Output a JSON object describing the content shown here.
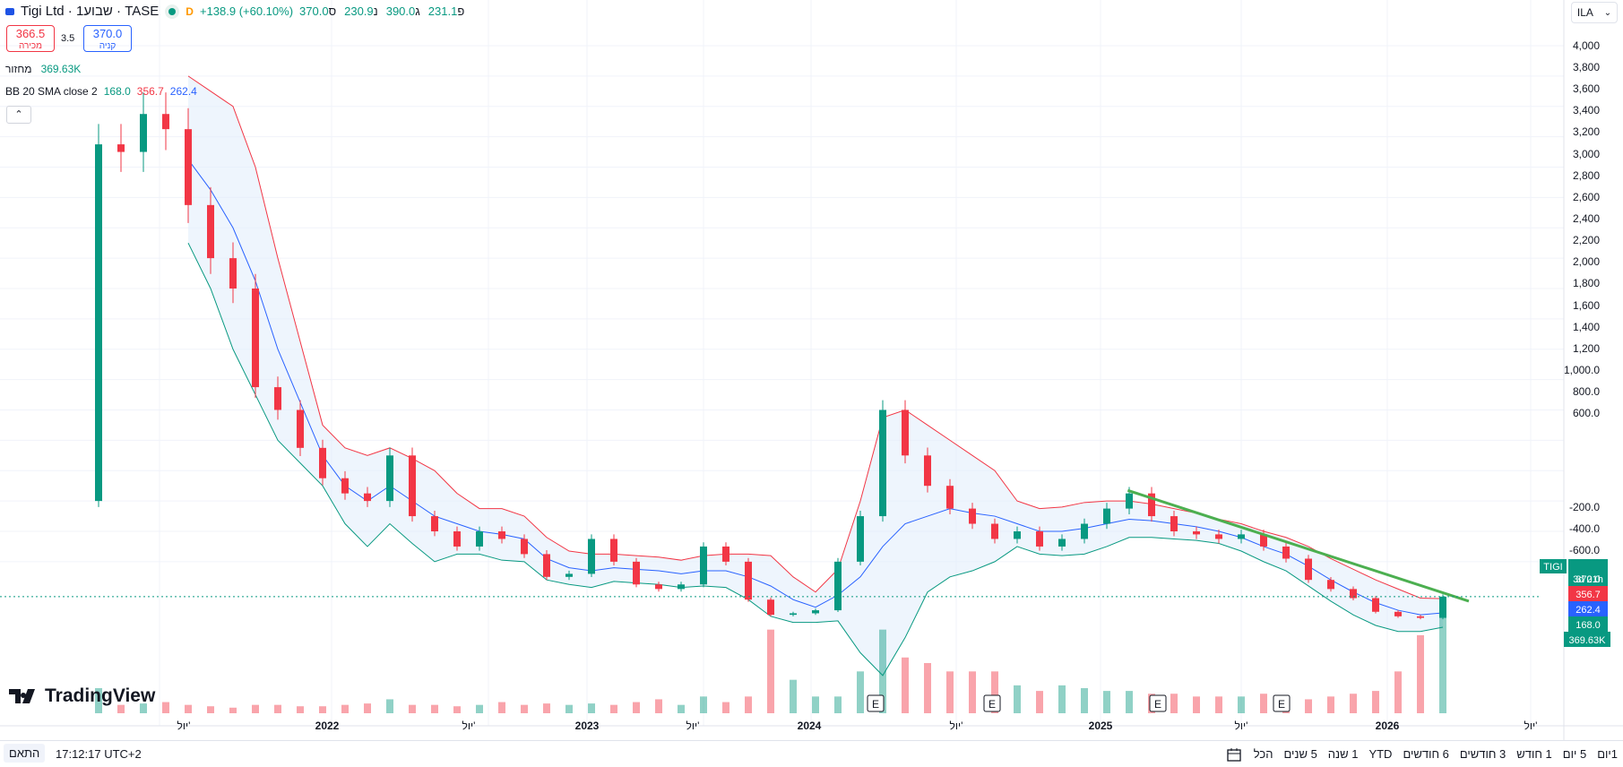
{
  "header": {
    "title": "Tigi Ltd · 1שבוע · TASE",
    "interval_flag": "D",
    "change": "+138.9 (+60.10%)",
    "ohlc": [
      {
        "label": "פ",
        "value": "231.1"
      },
      {
        "label": "ג",
        "value": "390.0"
      },
      {
        "label": "נ",
        "value": "230.9"
      },
      {
        "label": "ס",
        "value": "370.0"
      }
    ]
  },
  "trade": {
    "sell_price": "366.5",
    "sell_label": "מכירה",
    "spread": "3.5",
    "buy_price": "370.0",
    "buy_label": "קניה"
  },
  "volume_legend": {
    "label": "מחזור",
    "value": "369.63K"
  },
  "bb_legend": {
    "label": "BB 20 SMA close 2",
    "lower": "168.0",
    "upper": "356.7",
    "basis": "262.4"
  },
  "currency": {
    "label": "ILA",
    "icon": "chevron-down-icon"
  },
  "price_axis_labels": [
    "4,000",
    "3,800",
    "3,600",
    "3,400",
    "3,200",
    "3,000",
    "2,800",
    "2,600",
    "2,400",
    "2,200",
    "2,000",
    "1,800",
    "1,600",
    "1,400",
    "1,200",
    "1,000.0",
    "800.0",
    "600.0",
    "-200.0",
    "-400.0",
    "-600.0"
  ],
  "time_axis_labels": [
    "יול'",
    "2022",
    "יול'",
    "2023",
    "יול'",
    "2024",
    "יול'",
    "2025",
    "יול'",
    "2026",
    "יול'"
  ],
  "tags": {
    "symbol": "TIGI",
    "last_price": "370.0",
    "countdown": "3d 21h",
    "bb_upper": "356.7",
    "bb_basis": "262.4",
    "bb_lower": "168.0",
    "volume": "369.63K"
  },
  "earnings_markers": [
    "E",
    "E",
    "E",
    "E"
  ],
  "logo_text": "TradingView",
  "bottom": {
    "fit_label": "התאם",
    "clock": "17:12:17 UTC+2",
    "ranges": [
      "1יום",
      "5 יום",
      "1 חודש",
      "3 חודשים",
      "6 חודשים",
      "YTD",
      "1 שנה",
      "5 שנים",
      "הכל"
    ]
  },
  "colors": {
    "up": "#089981",
    "down": "#f23645",
    "bb_upper": "#f23645",
    "bb_basis": "#2962ff",
    "bb_lower": "#089981",
    "trendline": "#4caf50",
    "bb_fill": "#e3effc"
  },
  "chart_data": {
    "type": "candlestick",
    "series": [
      {
        "name": "Tigi Ltd",
        "type": "candlestick",
        "note": "weekly prices, ILA"
      },
      {
        "name": "BB 20 SMA close 2",
        "type": "bands"
      },
      {
        "name": "מחזור",
        "type": "volume"
      }
    ],
    "ylim": [
      160,
      4000
    ],
    "x": [
      "2021-03-15",
      "2021-04-05",
      "2021-05-03",
      "2021-06-07",
      "2021-07-05",
      "2021-08-02",
      "2021-09-06",
      "2021-10-04",
      "2021-11-01",
      "2021-12-06",
      "2022-01-03",
      "2022-02-07",
      "2022-03-07",
      "2022-04-04",
      "2022-05-02",
      "2022-06-06",
      "2022-07-04",
      "2022-08-01",
      "2022-09-05",
      "2022-10-03",
      "2022-11-07",
      "2022-12-05",
      "2023-01-02",
      "2023-02-06",
      "2023-03-06",
      "2023-04-03",
      "2023-05-01",
      "2023-06-05",
      "2023-07-03",
      "2023-08-07",
      "2023-09-04",
      "2023-10-02",
      "2023-11-06",
      "2023-12-04",
      "2024-01-01",
      "2024-02-05",
      "2024-03-04",
      "2024-04-01",
      "2024-05-06",
      "2024-06-03",
      "2024-07-01",
      "2024-08-05",
      "2024-09-02",
      "2024-10-07",
      "2024-11-04",
      "2024-12-02",
      "2025-01-06",
      "2025-02-03",
      "2025-03-03",
      "2025-04-07",
      "2025-05-05",
      "2025-06-02",
      "2025-07-07",
      "2025-08-04",
      "2025-09-01",
      "2025-10-06",
      "2025-11-03",
      "2025-12-01",
      "2026-01-05",
      "2026-02-02",
      "2026-03-02"
    ],
    "close": [
      3350,
      3300,
      3550,
      3450,
      2950,
      2600,
      2400,
      1750,
      1600,
      1350,
      1150,
      1050,
      1000,
      1300,
      900,
      800,
      700,
      800,
      750,
      650,
      500,
      520,
      750,
      600,
      450,
      420,
      450,
      700,
      600,
      350,
      250,
      260,
      280,
      600,
      900,
      1600,
      1300,
      1100,
      950,
      850,
      750,
      800,
      700,
      750,
      850,
      950,
      1050,
      900,
      800,
      780,
      750,
      780,
      700,
      620,
      480,
      420,
      360,
      270,
      240,
      230,
      370
    ],
    "upper_band": [
      null,
      null,
      null,
      null,
      3800,
      3700,
      3600,
      3200,
      2600,
      2050,
      1500,
      1350,
      1300,
      1350,
      1280,
      1200,
      1050,
      950,
      950,
      900,
      760,
      670,
      650,
      650,
      640,
      630,
      610,
      640,
      650,
      650,
      640,
      500,
      400,
      550,
      1000,
      1550,
      1600,
      1500,
      1400,
      1300,
      1200,
      1000,
      950,
      960,
      990,
      1000,
      1000,
      980,
      950,
      920,
      880,
      850,
      800,
      760,
      700,
      620,
      550,
      480,
      420,
      360,
      356.7
    ],
    "basis": [
      null,
      null,
      null,
      null,
      3250,
      3050,
      2800,
      2450,
      2000,
      1650,
      1300,
      1100,
      1000,
      1100,
      1000,
      900,
      850,
      800,
      780,
      750,
      620,
      560,
      540,
      560,
      550,
      540,
      520,
      540,
      540,
      500,
      440,
      350,
      300,
      380,
      500,
      700,
      850,
      900,
      950,
      920,
      900,
      850,
      800,
      800,
      820,
      850,
      880,
      870,
      850,
      830,
      800,
      760,
      700,
      650,
      570,
      480,
      400,
      330,
      280,
      250,
      262.4
    ],
    "lower_band": [
      null,
      null,
      null,
      null,
      2700,
      2400,
      2000,
      1700,
      1400,
      1250,
      1100,
      850,
      700,
      850,
      720,
      600,
      650,
      650,
      610,
      600,
      480,
      450,
      430,
      470,
      460,
      450,
      430,
      440,
      430,
      350,
      240,
      200,
      200,
      210,
      0,
      -150,
      100,
      400,
      500,
      540,
      600,
      700,
      650,
      640,
      650,
      700,
      760,
      760,
      750,
      740,
      720,
      670,
      600,
      540,
      440,
      340,
      250,
      180,
      140,
      140,
      168.0
    ],
    "volume_k": [
      90,
      30,
      35,
      40,
      30,
      25,
      20,
      30,
      30,
      25,
      25,
      30,
      35,
      50,
      30,
      30,
      25,
      30,
      40,
      30,
      35,
      30,
      35,
      30,
      40,
      50,
      30,
      60,
      40,
      60,
      300,
      120,
      60,
      60,
      150,
      300,
      200,
      180,
      150,
      150,
      150,
      100,
      80,
      100,
      90,
      80,
      80,
      70,
      70,
      60,
      60,
      60,
      70,
      60,
      50,
      60,
      70,
      80,
      150,
      280,
      369.63
    ],
    "trendline": {
      "from": {
        "x": "2025-01-01",
        "y": 1070
      },
      "to": {
        "x": "2026-04-06",
        "y": 340
      }
    }
  }
}
